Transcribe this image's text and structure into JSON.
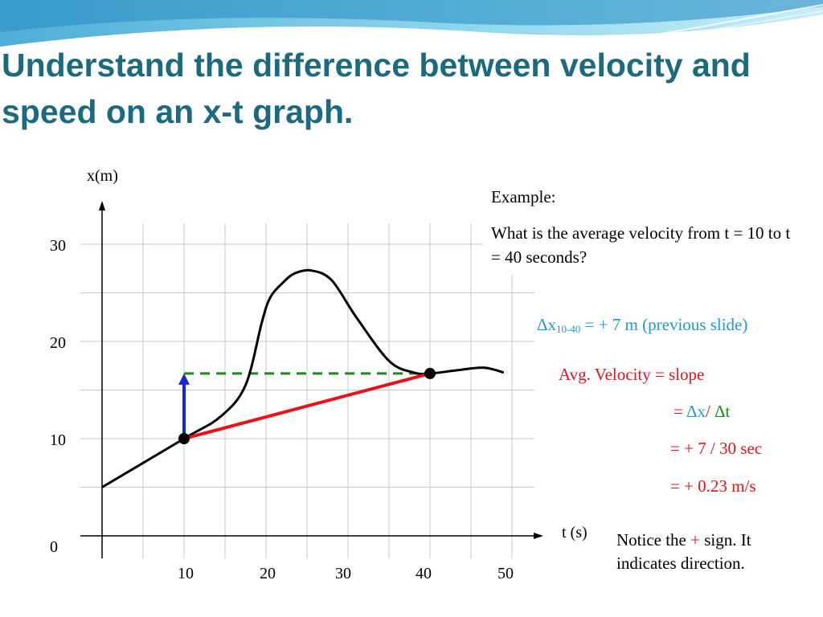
{
  "slide": {
    "title": "Understand the difference between velocity and speed on an x-t graph.",
    "accent_color": "#1b6a80"
  },
  "example": {
    "heading": "Example:",
    "question": "What is the average velocity from t = 10 to t = 40 seconds?"
  },
  "delta_x": {
    "symbol": "Δx",
    "subscript": "10-40",
    "rest": " = + 7 m (previous slide)"
  },
  "calculation": {
    "line1": "Avg. Velocity = slope",
    "line2_eq": "= ",
    "line2_dx": "Δx",
    "line2_slash": "/ ",
    "line2_dt": "Δt",
    "line3": "= + 7 / 30 sec",
    "line4": "= + 0.23 m/s"
  },
  "notice": {
    "before": "Notice the ",
    "plus": "+",
    "after": " sign.  It indicates direction."
  },
  "chart_data": {
    "type": "line",
    "xlabel": "t (s)",
    "ylabel": "x(m)",
    "x_ticks": [
      10,
      20,
      30,
      40,
      50
    ],
    "y_ticks": [
      0,
      10,
      20,
      30
    ],
    "xlim": [
      0,
      53
    ],
    "ylim": [
      0,
      33
    ],
    "grid": true,
    "curve": {
      "color": "#000000",
      "points": [
        [
          0,
          5
        ],
        [
          10,
          10
        ],
        [
          14.5,
          12.3
        ],
        [
          17.5,
          15.5
        ],
        [
          19.5,
          22
        ],
        [
          20.5,
          24.5
        ],
        [
          22,
          26
        ],
        [
          23.5,
          27
        ],
        [
          25.5,
          27.3
        ],
        [
          28,
          26.3
        ],
        [
          31,
          22.5
        ],
        [
          35,
          18
        ],
        [
          38,
          16.8
        ],
        [
          40,
          16.7
        ],
        [
          43,
          17
        ],
        [
          46.5,
          17.3
        ],
        [
          49,
          16.8
        ]
      ]
    },
    "markers": [
      {
        "t": 10,
        "x": 10
      },
      {
        "t": 40,
        "x": 16.7
      }
    ],
    "secant": {
      "color": "#e8121b",
      "from": [
        10,
        10
      ],
      "to": [
        40,
        16.7
      ]
    },
    "delta_t_line": {
      "color": "#1a8a1a",
      "style": "dashed",
      "from": [
        10,
        16.7
      ],
      "to": [
        40,
        16.7
      ]
    },
    "delta_x_arrow": {
      "color": "#1428d8",
      "from": [
        10,
        10
      ],
      "to": [
        10,
        16.7
      ]
    }
  }
}
